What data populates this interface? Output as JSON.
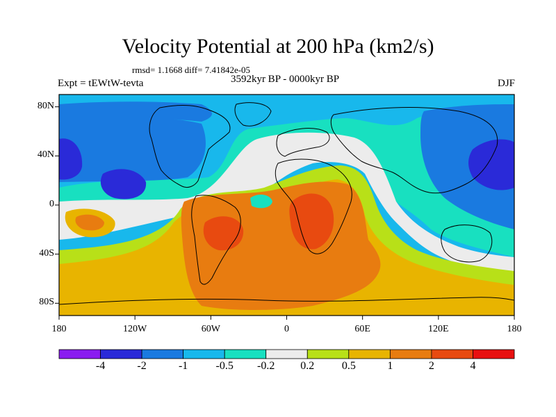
{
  "title": "Velocity Potential at 200 hPa (km2/s)",
  "stats": "rmsd= 1.1668 diff= 7.41842e-05",
  "expt": "Expt = tEWtW-tevta",
  "period": "3592kyr BP - 0000kyr BP",
  "season": "DJF",
  "axes": {
    "x_ticks": [
      "180",
      "120W",
      "60W",
      "0",
      "60E",
      "120E",
      "180"
    ],
    "y_ticks": [
      "80N",
      "40N",
      "0",
      "40S",
      "80S"
    ]
  },
  "colorbar": {
    "labels": [
      "-4",
      "-2",
      "-1",
      "-0.5",
      "-0.2",
      "0.2",
      "0.5",
      "1",
      "2",
      "4"
    ],
    "colors": [
      "#8a1cf0",
      "#2a2ad8",
      "#1a7ae0",
      "#18b8ec",
      "#18e0c0",
      "#ececec",
      "#b8e018",
      "#e8b400",
      "#e87c10",
      "#e84a10",
      "#e81010"
    ]
  },
  "field_colors": {
    "lt_minus4": "#8a1cf0",
    "minus4_minus2": "#2a2ad8",
    "minus2_minus1": "#1a7ae0",
    "minus1_minus05": "#18b8ec",
    "minus05_minus02": "#18e0c0",
    "minus02_02": "#ececec",
    "p02_p05": "#b8e018",
    "p05_p1": "#e8b400",
    "p1_p2": "#e87c10",
    "p2_p4": "#e84a10",
    "gt_p4": "#e81010"
  }
}
